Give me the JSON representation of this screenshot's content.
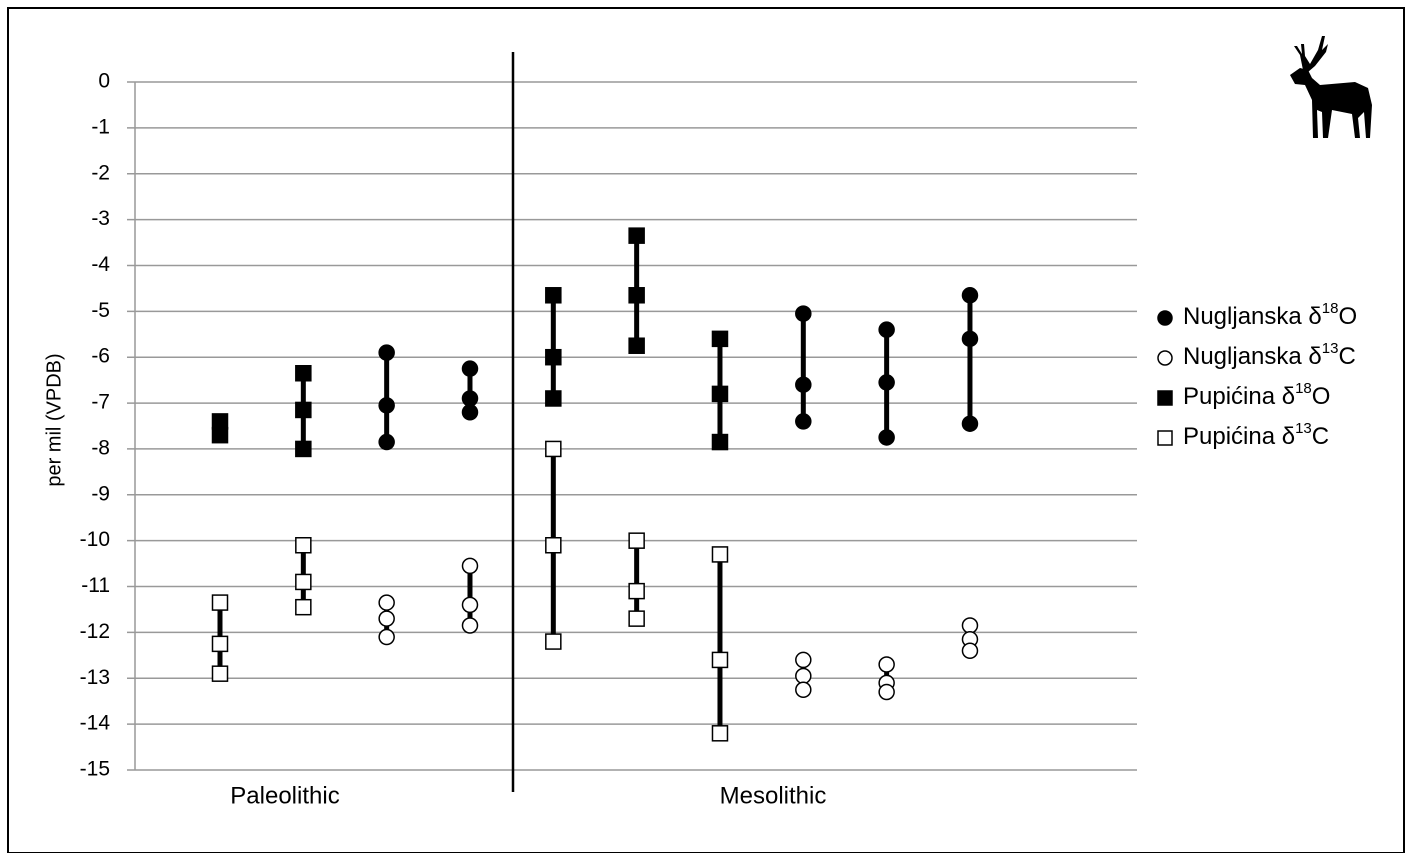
{
  "chart_data": {
    "type": "range",
    "ylabel": "per mil (VPDB)",
    "groups": [
      "Paleolithic",
      "Mesolithic"
    ],
    "categories": [
      null,
      null,
      null,
      null,
      null,
      null,
      null,
      null,
      null,
      null
    ],
    "ylim": [
      -15,
      0
    ],
    "yticks": [
      0,
      -1,
      -2,
      -3,
      -4,
      -5,
      -6,
      -7,
      -8,
      -9,
      -10,
      -11,
      -12,
      -13,
      -14,
      -15
    ],
    "grid": true,
    "legend": "right",
    "series": [
      {
        "name": "Nugljanska δ18O",
        "marker": "circle",
        "color": "#000000",
        "values": [
          null,
          null,
          [
            -5.9,
            -7.05,
            -7.85
          ],
          [
            -6.25,
            -6.9,
            -7.2
          ],
          null,
          null,
          null,
          [
            -5.05,
            -6.6,
            -7.4
          ],
          [
            -5.4,
            -6.55,
            -7.75
          ],
          [
            -4.65,
            -5.6,
            -7.45
          ]
        ]
      },
      {
        "name": "Nugljanska δ13C",
        "marker": "circle",
        "color": "#ffffff",
        "values": [
          null,
          null,
          [
            -11.35,
            -11.7,
            -12.1
          ],
          [
            -10.55,
            -11.4,
            -11.85
          ],
          null,
          null,
          null,
          [
            -12.6,
            -12.95,
            -13.25
          ],
          [
            -12.7,
            -13.1,
            -13.3
          ],
          [
            -11.85,
            -12.15,
            -12.4
          ]
        ]
      },
      {
        "name": "Pupićina δ18O",
        "marker": "square",
        "color": "#000000",
        "values": [
          [
            -7.4,
            -7.7
          ],
          [
            -6.35,
            -7.15,
            -8.0
          ],
          null,
          null,
          [
            -4.65,
            -6.0,
            -6.9
          ],
          [
            -3.35,
            -4.65,
            -5.75
          ],
          [
            -5.6,
            -6.8,
            -7.85
          ],
          null,
          null,
          null
        ]
      },
      {
        "name": "Pupićina δ13C",
        "marker": "square",
        "color": "#ffffff",
        "values": [
          [
            -11.35,
            -12.25,
            -12.9
          ],
          [
            -10.1,
            -10.9,
            -11.45
          ],
          null,
          null,
          [
            -8.0,
            -10.1,
            -12.2
          ],
          [
            -10.0,
            -11.1,
            -11.7
          ],
          [
            -10.3,
            -12.6,
            -14.2
          ],
          null,
          null,
          null
        ]
      }
    ]
  }
}
